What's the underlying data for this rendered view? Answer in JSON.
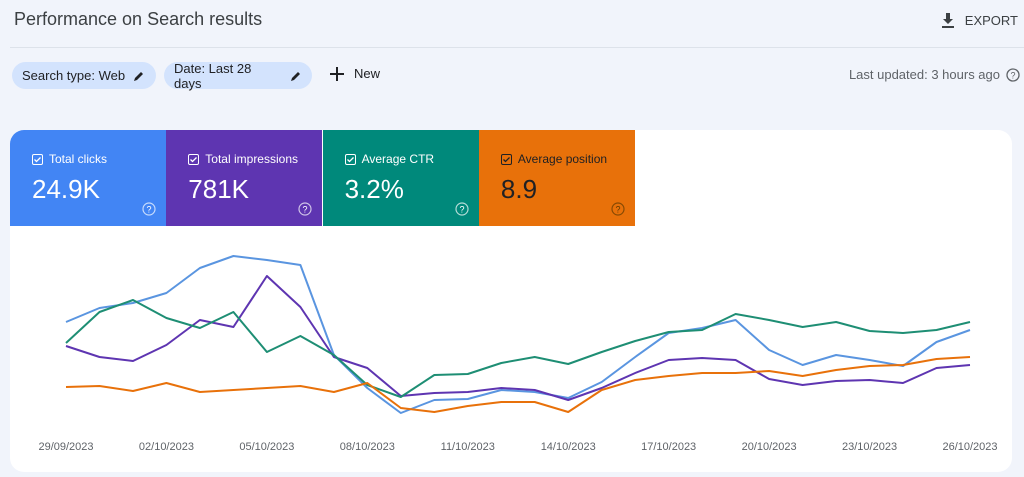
{
  "header": {
    "title": "Performance on Search results",
    "export": "EXPORT"
  },
  "filters": [
    "Search type: Web",
    "Date: Last 28 days"
  ],
  "new_button": "New",
  "last_updated": "Last updated: 3 hours ago",
  "metrics": [
    "24.9K",
    "781K",
    "3.2%",
    "8.9"
  ],
  "chart_data": {
    "type": "line",
    "categories": [
      "29/09/2023",
      null,
      null,
      "02/10/2023",
      null,
      null,
      "05/10/2023",
      null,
      null,
      "08/10/2023",
      null,
      null,
      "11/10/2023",
      null,
      null,
      "14/10/2023",
      null,
      null,
      "17/10/2023",
      null,
      null,
      "20/10/2023",
      null,
      null,
      "23/10/2023",
      null,
      null,
      "26/10/2023"
    ],
    "ylim": [
      0,
      100
    ],
    "series": [
      {
        "name": "Total clicks",
        "color": "#5a95e0",
        "values": [
          59,
          66,
          68.5,
          73.5,
          86,
          92,
          90,
          87.5,
          42.5,
          26,
          13.5,
          20,
          20.5,
          25,
          24,
          21,
          29,
          41.5,
          53.5,
          56,
          60,
          45,
          37.5,
          42.5,
          40,
          37,
          49,
          55
        ]
      },
      {
        "name": "Total impressions",
        "color": "#5e35b1",
        "values": [
          47,
          41.5,
          39.5,
          47.5,
          60,
          56.5,
          82,
          66.5,
          41.5,
          36,
          22,
          23.5,
          24,
          26,
          25,
          20,
          26,
          33.5,
          40,
          41,
          40,
          30.5,
          27.5,
          29.5,
          30,
          28.5,
          36,
          37.5
        ]
      },
      {
        "name": "Average CTR",
        "color": "#1e8e74",
        "values": [
          48.5,
          64,
          70,
          61,
          56,
          64,
          44,
          52,
          42.5,
          27.5,
          21.5,
          32.5,
          33,
          38.5,
          41.5,
          38,
          44,
          49.5,
          54,
          55,
          63,
          60,
          56.5,
          59,
          54.5,
          53.5,
          55,
          59
        ]
      },
      {
        "name": "Average position",
        "color": "#e8710a",
        "values": [
          26.5,
          27,
          24.5,
          28.5,
          24,
          25,
          26,
          27,
          24,
          28.5,
          16,
          14,
          17,
          19,
          19,
          14,
          25,
          30,
          32,
          33.5,
          33.5,
          34.5,
          32,
          35,
          37,
          37.5,
          40.5,
          41.5
        ]
      }
    ],
    "tile_colors": [
      "#4285f4",
      "#5e35b1",
      "#00897b",
      "#e8710a"
    ]
  }
}
